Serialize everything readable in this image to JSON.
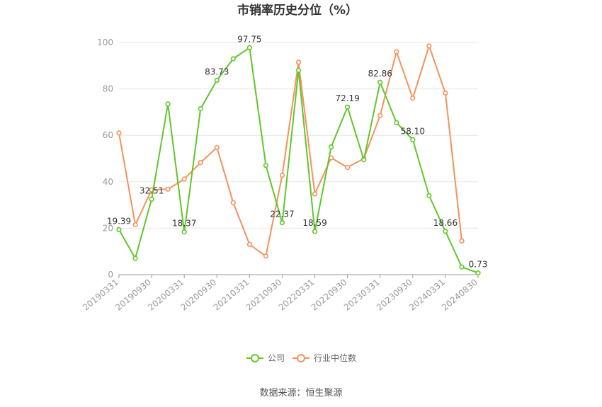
{
  "chart_data": {
    "type": "line",
    "title": "市销率历史分位（%）",
    "x": [
      "20190331",
      "20190630",
      "20190930",
      "20191231",
      "20200331",
      "20200630",
      "20200930",
      "20201231",
      "20210331",
      "20210630",
      "20210930",
      "20211231",
      "20220331",
      "20220630",
      "20220930",
      "20221231",
      "20230331",
      "20230630",
      "20230930",
      "20231231",
      "20240331",
      "20240630",
      "20240830"
    ],
    "x_tick_labels": [
      "20190331",
      "20190930",
      "20200331",
      "20200930",
      "20210331",
      "20210930",
      "20220331",
      "20220930",
      "20230331",
      "20230930",
      "20240331",
      "20240830"
    ],
    "ylim": [
      0,
      100
    ],
    "y_ticks": [
      0,
      20,
      40,
      60,
      80,
      100
    ],
    "grid": true,
    "legend_position": "bottom",
    "series": [
      {
        "name": "公司",
        "color": "#5fc72a",
        "values": [
          19.39,
          7.0,
          32.51,
          73.5,
          18.37,
          71.5,
          83.73,
          93.0,
          97.75,
          47.0,
          22.37,
          88.0,
          18.59,
          55.0,
          72.19,
          49.5,
          82.86,
          65.5,
          58.1,
          34.0,
          18.66,
          3.3,
          0.73
        ],
        "labels": [
          "19.39",
          "",
          "32.51",
          "",
          "18.37",
          "",
          "83.73",
          "",
          "97.75",
          "",
          "22.37",
          "",
          "18.59",
          "",
          "72.19",
          "",
          "82.86",
          "",
          "58.10",
          "",
          "18.66",
          "",
          "0.73"
        ]
      },
      {
        "name": "行业中位数",
        "color": "#f5915c",
        "values": [
          61.0,
          21.5,
          36.5,
          36.8,
          41.2,
          48.3,
          54.8,
          31.0,
          13.0,
          8.0,
          42.8,
          91.5,
          34.8,
          50.3,
          46.2,
          50.0,
          68.5,
          96.0,
          76.0,
          98.5,
          78.2,
          14.5,
          null
        ]
      }
    ]
  },
  "legend": {
    "company": "公司",
    "industry": "行业中位数"
  },
  "source": "数据来源：恒生聚源"
}
